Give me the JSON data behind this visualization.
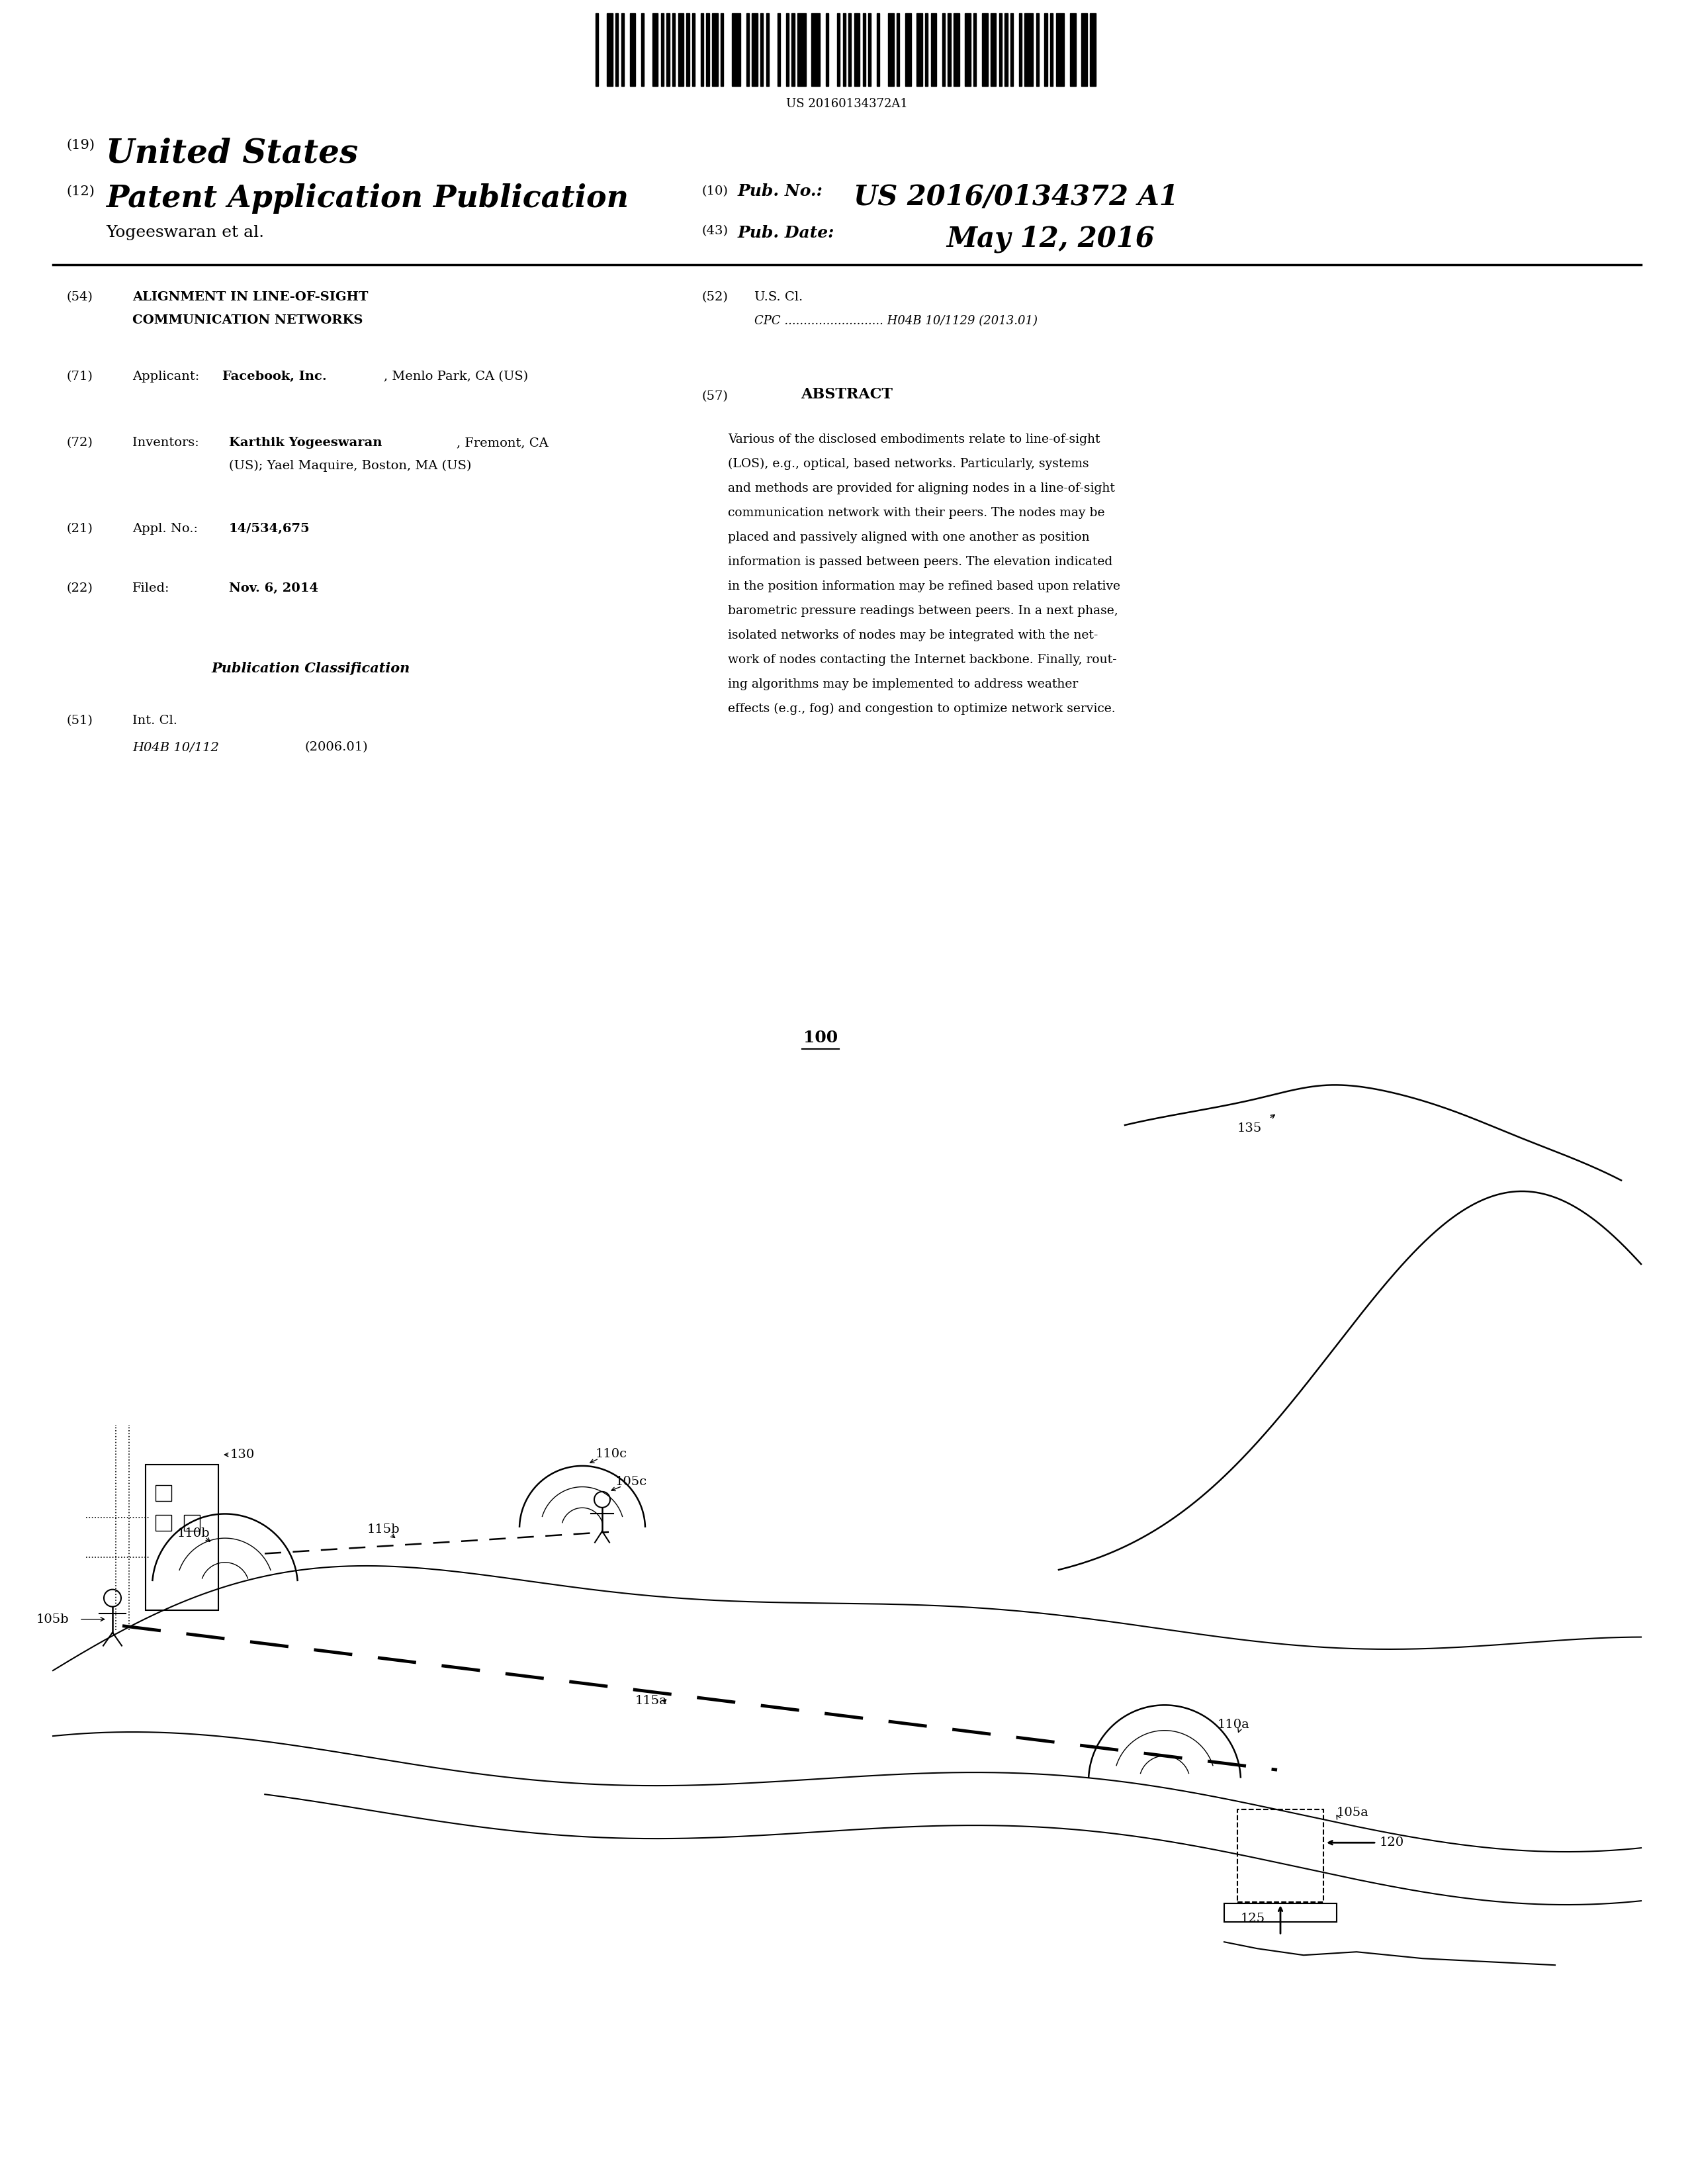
{
  "barcode_text": "US 20160134372A1",
  "country": "United States",
  "country_prefix": "(19)",
  "doc_type": "Patent Application Publication",
  "doc_type_prefix": "(12)",
  "pub_no_prefix": "(10)",
  "pub_no_label": "Pub. No.:",
  "pub_no": "US 2016/0134372 A1",
  "inventors_line": "Yogeeswaran et al.",
  "pub_date_prefix": "(43)",
  "pub_date_label": "Pub. Date:",
  "pub_date": "May 12, 2016",
  "field54_prefix": "(54)",
  "field54_line1": "ALIGNMENT IN LINE-OF-SIGHT",
  "field54_line2": "COMMUNICATION NETWORKS",
  "field52_prefix": "(52)",
  "field52_label": "U.S. Cl.",
  "field52_cpc": "CPC .......................... H04B 10/1129 (2013.01)",
  "field71_prefix": "(71)",
  "field72_prefix": "(72)",
  "field72_label": "Inventors:",
  "field72_inventor2": "(US); Yael Maquire, Boston, MA (US)",
  "field21_prefix": "(21)",
  "field22_prefix": "(22)",
  "field22_label": "Filed:",
  "field22_date": "Nov. 6, 2014",
  "pub_class_title": "Publication Classification",
  "field51_prefix": "(51)",
  "field51_label": "Int. Cl.",
  "field51_class": "H04B 10/112",
  "field51_year": "(2006.01)",
  "field57_label": "ABSTRACT",
  "field57_prefix": "(57)",
  "fig_label": "100",
  "label_130": "130",
  "label_110c": "110c",
  "label_135": "135",
  "label_110b": "110b",
  "label_115b": "115b",
  "label_105c": "105c",
  "label_110a": "110a",
  "label_105b": "105b",
  "label_115a": "115a",
  "label_105a": "105a",
  "label_120": "120",
  "label_125": "125",
  "abstract_lines": [
    "Various of the disclosed embodiments relate to line-of-sight",
    "(LOS), e.g., optical, based networks. Particularly, systems",
    "and methods are provided for aligning nodes in a line-of-sight",
    "communication network with their peers. The nodes may be",
    "placed and passively aligned with one another as position",
    "information is passed between peers. The elevation indicated",
    "in the position information may be refined based upon relative",
    "barometric pressure readings between peers. In a next phase,",
    "isolated networks of nodes may be integrated with the net-",
    "work of nodes contacting the Internet backbone. Finally, rout-",
    "ing algorithms may be implemented to address weather",
    "effects (e.g., fog) and congestion to optimize network service."
  ]
}
